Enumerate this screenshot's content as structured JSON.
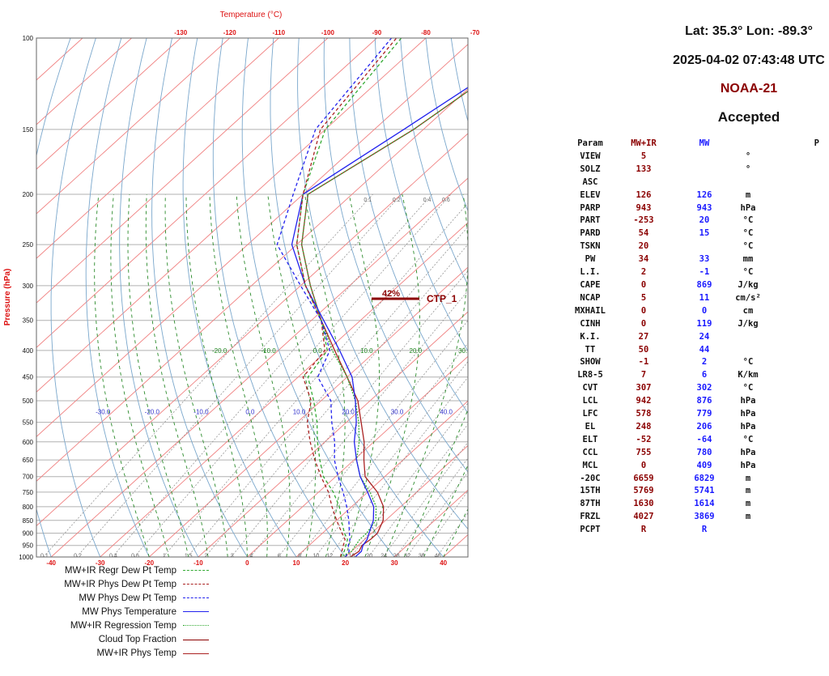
{
  "header": {
    "location": "Lat: 35.3° Lon: -89.3°",
    "datetime": "2025-04-02 07:43:48 UTC",
    "satellite": "NOAA-21",
    "status": "Accepted"
  },
  "params_table": {
    "headers": [
      "Param",
      "MW+IR",
      "MW",
      "",
      "P"
    ],
    "rows": [
      [
        "VIEW",
        "5",
        "",
        "°"
      ],
      [
        "SOLZ",
        "133",
        "",
        "°"
      ],
      [
        "ASC",
        "",
        "",
        ""
      ],
      [
        "ELEV",
        "126",
        "126",
        "m"
      ],
      [
        "PARP",
        "943",
        "943",
        "hPa"
      ],
      [
        "PART",
        "-253",
        "20",
        "°C"
      ],
      [
        "PARD",
        "54",
        "15",
        "°C"
      ],
      [
        "TSKN",
        "20",
        "",
        "°C"
      ],
      [
        "PW",
        "34",
        "33",
        "mm"
      ],
      [
        "L.I.",
        "2",
        "-1",
        "°C"
      ],
      [
        "CAPE",
        "0",
        "869",
        "J/kg"
      ],
      [
        "NCAP",
        "5",
        "11",
        "cm/s²"
      ],
      [
        "MXHAIL",
        "0",
        "0",
        "cm"
      ],
      [
        "CINH",
        "0",
        "119",
        "J/kg"
      ],
      [
        "K.I.",
        "27",
        "24",
        ""
      ],
      [
        "TT",
        "50",
        "44",
        ""
      ],
      [
        "SHOW",
        "-1",
        "2",
        "°C"
      ],
      [
        "LR8-5",
        "7",
        "6",
        "K/km"
      ],
      [
        "CVT",
        "307",
        "302",
        "°C"
      ],
      [
        "LCL",
        "942",
        "876",
        "hPa"
      ],
      [
        "LFC",
        "578",
        "779",
        "hPa"
      ],
      [
        "EL",
        "248",
        "206",
        "hPa"
      ],
      [
        "ELT",
        "-52",
        "-64",
        "°C"
      ],
      [
        "CCL",
        "755",
        "780",
        "hPa"
      ],
      [
        "MCL",
        "0",
        "409",
        "hPa"
      ],
      [
        "-20C",
        "6659",
        "6829",
        "m"
      ],
      [
        "15TH",
        "5769",
        "5741",
        "m"
      ],
      [
        "87TH",
        "1630",
        "1614",
        "m"
      ],
      [
        "FRZL",
        "4027",
        "3869",
        "m"
      ],
      [
        "PCPT",
        "R",
        "R",
        ""
      ]
    ]
  },
  "legend": [
    {
      "label": "MW+IR Regr Dew Pt Temp",
      "color": "#33aa33",
      "style": "dashed"
    },
    {
      "label": "MW+IR Phys Dew Pt Temp",
      "color": "#aa2222",
      "style": "dashed"
    },
    {
      "label": "MW Phys Dew Pt Temp",
      "color": "#2222ee",
      "style": "dashed"
    },
    {
      "label": "MW Phys Temperature",
      "color": "#2222ee",
      "style": "solid"
    },
    {
      "label": "MW+IR Regression Temp",
      "color": "#33aa33",
      "style": "dotted"
    },
    {
      "label": "Cloud Top Fraction",
      "color": "#8b0000",
      "style": "solid"
    },
    {
      "label": "MW+IR Phys Temp",
      "color": "#aa2222",
      "style": "solid"
    }
  ],
  "chart_data": {
    "type": "line",
    "chart_type": "skew-T log-p",
    "title": "Temperature (°C)",
    "xlabel": "",
    "ylabel": "Pressure (hPa)",
    "x_ticks": [
      "-40",
      "-30",
      "-20",
      "-10",
      "0",
      "10",
      "20",
      "30",
      "40"
    ],
    "x_range": [
      -43,
      45
    ],
    "top_ticks": [
      "-130",
      "-120",
      "-110",
      "-100",
      "-90",
      "-80",
      "-70"
    ],
    "y_ticks": [
      "100",
      "150",
      "200",
      "250",
      "300",
      "350",
      "400",
      "450",
      "500",
      "550",
      "600",
      "650",
      "700",
      "750",
      "800",
      "850",
      "900",
      "950",
      "1000"
    ],
    "y_range": [
      100,
      1000
    ],
    "y_scale": "log",
    "mixing_ratio_labels": [
      "0.1",
      "0.2",
      "0.4",
      "0.6",
      "1",
      "1.5",
      "2",
      "3",
      "4",
      "6",
      "8",
      "10",
      "12",
      "16",
      "20",
      "24",
      "28",
      "32",
      "38",
      "46"
    ],
    "dry_adiabat_labels": [
      "-20.0",
      "-10.0",
      "0.0",
      "10.0",
      "20.0",
      "30.0"
    ],
    "moist_adiabat_labels": [
      "-30.0",
      "-20.0",
      "-10.0",
      "0.0",
      "10.0",
      "20.0",
      "30.0",
      "40.0",
      "50.0",
      "60.0",
      "70.0"
    ],
    "upper_mixing_labels": [
      "0.1",
      "0.2",
      "0.4",
      "0.6",
      "1",
      "1.5",
      "2"
    ],
    "annotation": {
      "pressure": 318,
      "cloud_fraction_label": "42%",
      "text": "CTP_1"
    },
    "series": [
      {
        "name": "MW+IR Phys Temp",
        "color": "#aa2222",
        "dash": "",
        "pressure": [
          1000,
          975,
          950,
          925,
          900,
          850,
          800,
          750,
          700,
          650,
          600,
          550,
          500,
          450,
          400,
          350,
          300,
          250,
          200,
          150,
          100
        ],
        "temp": [
          21,
          21.5,
          20.8,
          21.2,
          21.2,
          19.5,
          16.5,
          12,
          6,
          2,
          -2,
          -7,
          -12.5,
          -20,
          -28.5,
          -38,
          -48,
          -59,
          -69,
          -62,
          -56
        ]
      },
      {
        "name": "MW+IR Regression Temp",
        "color": "#33aa33",
        "dash": "2,1.5",
        "pressure": [
          1000,
          975,
          950,
          925,
          900,
          850,
          800,
          750,
          700,
          650,
          600,
          550,
          500,
          450,
          400,
          350,
          300,
          250,
          200,
          150,
          100
        ],
        "temp": [
          19,
          20,
          19.5,
          19,
          19,
          18,
          15,
          10.5,
          5,
          0.5,
          -3,
          -7.5,
          -13,
          -20,
          -29,
          -38,
          -48,
          -59,
          -69,
          -62,
          -56
        ]
      },
      {
        "name": "MW Phys Temperature",
        "color": "#2222ee",
        "dash": "",
        "pressure": [
          1000,
          975,
          950,
          925,
          900,
          850,
          800,
          750,
          700,
          650,
          600,
          550,
          500,
          450,
          400,
          350,
          300,
          250,
          200,
          150,
          100
        ],
        "temp": [
          22,
          22,
          21,
          20.5,
          19.5,
          17.5,
          14.5,
          10,
          5,
          0.5,
          -4,
          -8,
          -13,
          -19,
          -27.5,
          -37.5,
          -49,
          -61,
          -70,
          -64,
          -56
        ]
      },
      {
        "name": "MW+IR Regr Dew Pt Temp",
        "color": "#33aa33",
        "dash": "4,3",
        "pressure": [
          1000,
          975,
          950,
          925,
          900,
          850,
          800,
          750,
          700,
          650,
          600,
          550,
          500,
          450,
          400,
          350,
          300,
          250,
          200,
          150,
          100
        ],
        "temp": [
          19,
          18.5,
          17.5,
          16.5,
          14.5,
          11,
          7.5,
          3,
          -2.5,
          -7,
          -11.5,
          -16,
          -21.5,
          -28,
          -30,
          -38,
          -49,
          -60,
          -70,
          -80,
          -85
        ]
      },
      {
        "name": "MW+IR Phys Dew Pt Temp",
        "color": "#aa2222",
        "dash": "4,3",
        "pressure": [
          1000,
          975,
          950,
          925,
          900,
          850,
          800,
          750,
          700,
          650,
          600,
          550,
          500,
          450,
          400,
          350,
          300,
          250,
          200,
          150,
          100
        ],
        "temp": [
          19,
          18,
          17,
          16,
          14,
          10,
          6,
          2,
          -3,
          -8,
          -13,
          -18,
          -22,
          -29,
          -30.5,
          -38,
          -49,
          -60,
          -70,
          -81,
          -86
        ]
      },
      {
        "name": "MW Phys Dew Pt Temp",
        "color": "#2222ee",
        "dash": "4,3",
        "pressure": [
          1000,
          975,
          950,
          925,
          900,
          850,
          800,
          750,
          700,
          650,
          600,
          550,
          500,
          450,
          400,
          350,
          300,
          250,
          200,
          150,
          100
        ],
        "temp": [
          20,
          19.5,
          18,
          17,
          15.5,
          12.5,
          9,
          5,
          0.5,
          -4,
          -8,
          -13,
          -18,
          -26,
          -29.5,
          -38,
          -50,
          -64,
          -72,
          -82,
          -87
        ]
      }
    ]
  }
}
